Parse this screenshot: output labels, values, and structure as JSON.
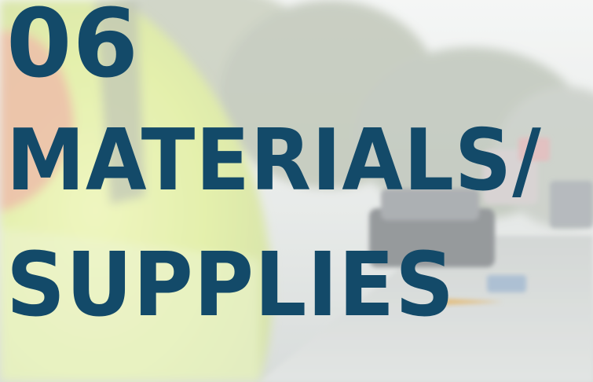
{
  "section": {
    "number": "06",
    "title_line_1": "MATERIALS/",
    "title_line_2": "SUPPLIES"
  },
  "colors": {
    "heading": "#134a69"
  }
}
